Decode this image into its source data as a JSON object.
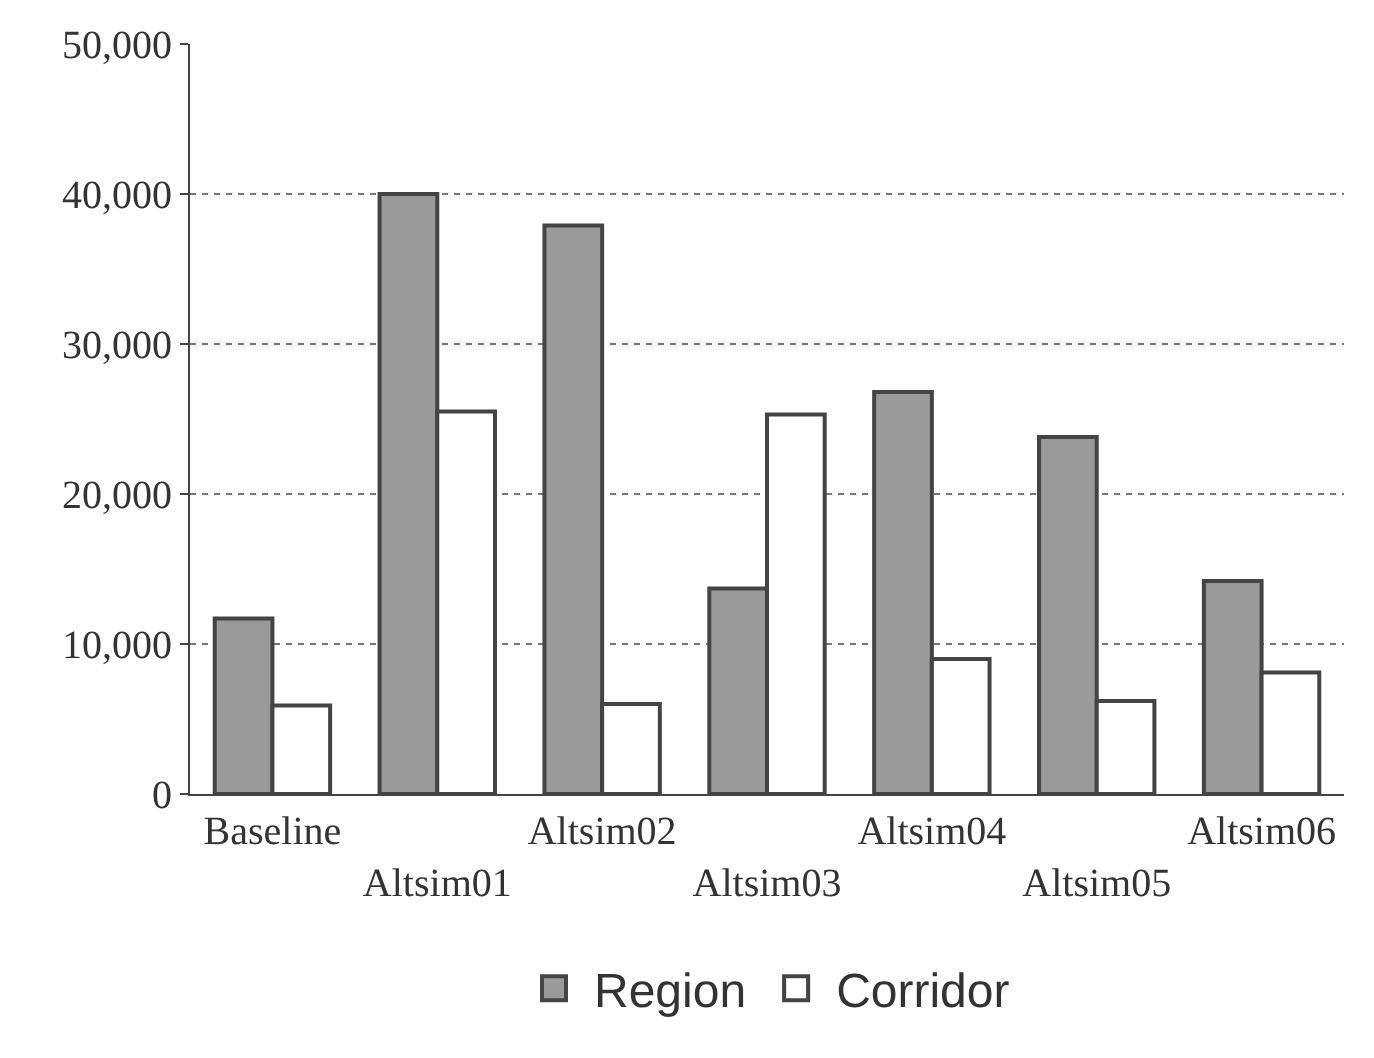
{
  "chart_data": {
    "type": "bar",
    "categories": [
      "Baseline",
      "Altsim01",
      "Altsim02",
      "Altsim03",
      "Altsim04",
      "Altsim05",
      "Altsim06"
    ],
    "series": [
      {
        "name": "Region",
        "color": "#9a9a9a",
        "values": [
          11700,
          40000,
          37900,
          13700,
          26800,
          23800,
          14200
        ]
      },
      {
        "name": "Corridor",
        "color": "#ffffff",
        "values": [
          5900,
          25500,
          6000,
          25300,
          9000,
          6200,
          8100
        ]
      }
    ],
    "ylim": [
      0,
      50000
    ],
    "yticks": [
      {
        "value": 0,
        "label": "0"
      },
      {
        "value": 10000,
        "label": "10,000"
      },
      {
        "value": 20000,
        "label": "20,000"
      },
      {
        "value": 30000,
        "label": "30,000"
      },
      {
        "value": 40000,
        "label": "40,000"
      },
      {
        "value": 50000,
        "label": "50,000"
      }
    ],
    "grid": "y",
    "legend": "bottom"
  }
}
